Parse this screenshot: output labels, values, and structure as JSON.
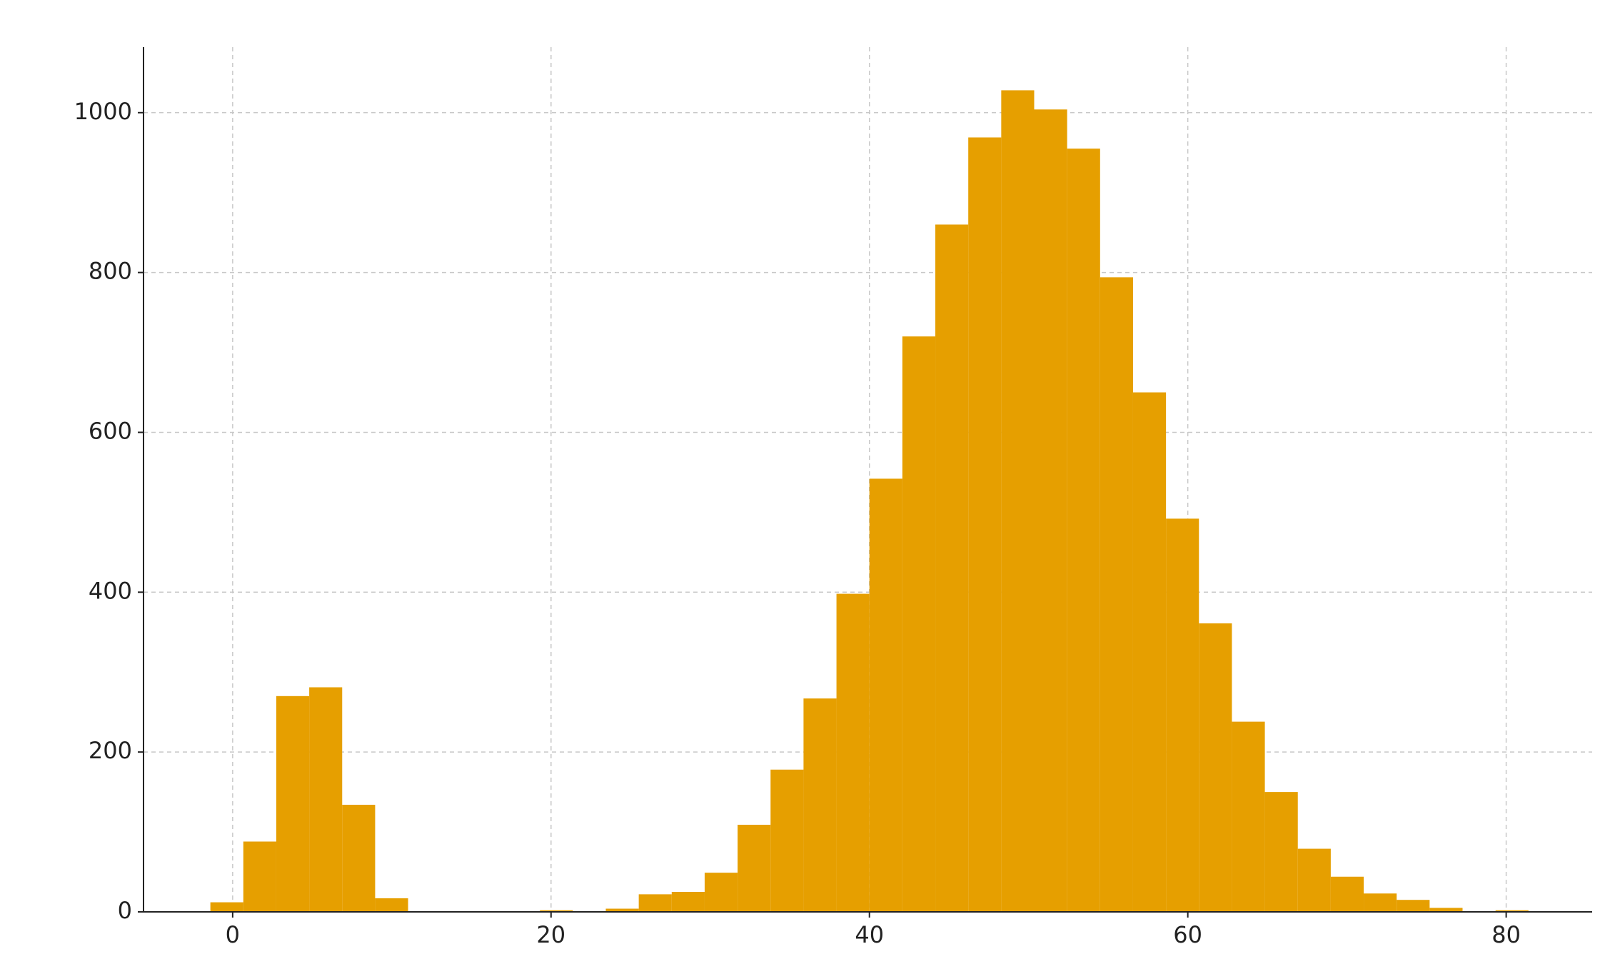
{
  "chart_data": {
    "type": "histogram",
    "bins": [
      -1.4,
      0.67,
      2.74,
      4.81,
      6.88,
      8.95,
      11.02,
      13.09,
      15.16,
      17.23,
      19.3,
      21.37,
      23.44,
      25.51,
      27.58,
      29.65,
      31.72,
      33.79,
      35.86,
      37.93,
      40.0,
      42.07,
      44.14,
      46.21,
      48.28,
      50.35,
      52.42,
      54.49,
      56.56,
      58.63,
      60.7,
      62.77,
      64.84,
      66.91,
      68.98,
      71.05,
      73.12,
      75.19,
      77.26,
      79.33,
      81.4
    ],
    "values": [
      12,
      88,
      270,
      281,
      134,
      17,
      0,
      0,
      0,
      0,
      2,
      0,
      4,
      22,
      25,
      49,
      109,
      178,
      267,
      398,
      542,
      720,
      860,
      969,
      1028,
      1004,
      955,
      794,
      650,
      492,
      361,
      238,
      150,
      79,
      44,
      23,
      15,
      5,
      0,
      2
    ],
    "color": "#e69f00",
    "xlim": [
      -5.6,
      85.4
    ],
    "xticks": [
      0,
      20,
      40,
      60,
      80
    ],
    "ylim": [
      0,
      1082
    ],
    "yticks": [
      0,
      200,
      400,
      600,
      800,
      1000
    ],
    "grid": true
  }
}
